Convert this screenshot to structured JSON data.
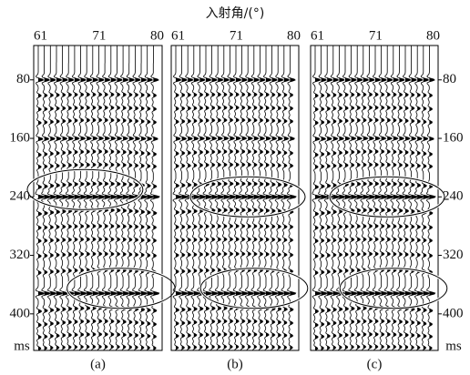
{
  "figure": {
    "x_label": "入射角/(°)",
    "y_unit": "ms",
    "ylim": [
      33,
      450
    ],
    "yticks": [
      80,
      160,
      240,
      320,
      400
    ],
    "panels": [
      {
        "caption": "(a)",
        "xlim": [
          61,
          80
        ],
        "xticks": [
          61,
          71,
          80
        ]
      },
      {
        "caption": "(b)",
        "xlim": [
          61,
          80
        ],
        "xticks": [
          61,
          71,
          80
        ]
      },
      {
        "caption": "(c)",
        "xlim": [
          61,
          80
        ],
        "xticks": [
          61,
          71,
          80
        ]
      }
    ]
  }
}
